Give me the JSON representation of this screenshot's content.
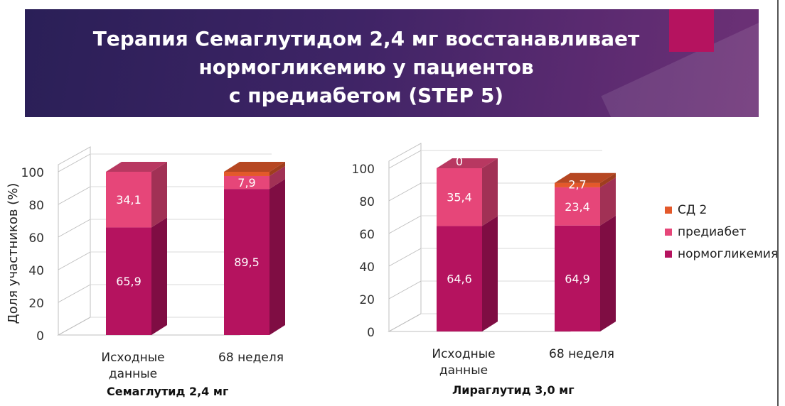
{
  "title": "Терапия Семаглутидом 2,4 мг восстанавливает\nнормогликемию у пациентов\nс предиабетом (STEP 5)",
  "colors": {
    "normo": "#b5135f",
    "prediabetes": "#e64679",
    "t2d": "#e3592b",
    "accent": "#b5135f"
  },
  "legend": [
    {
      "label": "СД 2",
      "color": "#e3592b"
    },
    {
      "label": "предиабет",
      "color": "#e64679"
    },
    {
      "label": "нормогликемия",
      "color": "#b5135f"
    }
  ],
  "chart_data": [
    {
      "type": "bar",
      "stacked": true,
      "title": "Семаглутид 2,4 мг",
      "ylabel": "Доля участников (%)",
      "xlabel": "",
      "ylim": [
        0,
        100
      ],
      "yticks": [
        "0",
        "20",
        "40",
        "60",
        "80",
        "100"
      ],
      "categories": [
        "Исходные данные",
        "68 неделя"
      ],
      "category_labels": [
        [
          "Исходные",
          "данные"
        ],
        [
          "68 неделя"
        ]
      ],
      "series": [
        {
          "name": "нормогликемия",
          "values": [
            65.9,
            89.5
          ],
          "labels": [
            "65,9",
            "89,5"
          ]
        },
        {
          "name": "предиабет",
          "values": [
            34.1,
            7.9
          ],
          "labels": [
            "34,1",
            "7,9"
          ]
        },
        {
          "name": "СД 2",
          "values": [
            0,
            2.6
          ],
          "labels": [
            "",
            ""
          ]
        }
      ]
    },
    {
      "type": "bar",
      "stacked": true,
      "title": "Лираглутид 3,0 мг",
      "ylabel": "",
      "xlabel": "",
      "ylim": [
        0,
        100
      ],
      "yticks": [
        "0",
        "20",
        "40",
        "60",
        "80",
        "100"
      ],
      "categories": [
        "Исходные данные",
        "68 неделя"
      ],
      "category_labels": [
        [
          "Исходные",
          "данные"
        ],
        [
          "68 неделя"
        ]
      ],
      "series": [
        {
          "name": "нормогликемия",
          "values": [
            64.6,
            64.9
          ],
          "labels": [
            "64,6",
            "64,9"
          ]
        },
        {
          "name": "предиабет",
          "values": [
            35.4,
            23.4
          ],
          "labels": [
            "35,4",
            "23,4"
          ]
        },
        {
          "name": "СД 2",
          "values": [
            0,
            2.7
          ],
          "labels": [
            "0",
            "2,7"
          ]
        }
      ]
    }
  ]
}
